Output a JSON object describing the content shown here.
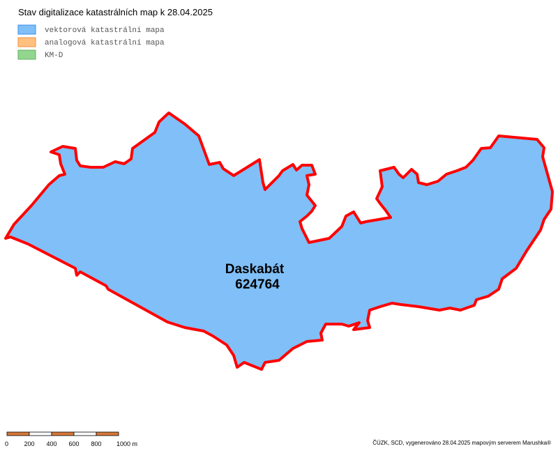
{
  "title": "Stav digitalizace katastrálních map k 28.04.2025",
  "legend": [
    {
      "label": "vektorová katastrální mapa",
      "color": "#80bff7",
      "border": "#3a8ee6"
    },
    {
      "label": "analogová katastrální mapa",
      "color": "#ffc080",
      "border": "#f09040"
    },
    {
      "label": "KM-D",
      "color": "#92d68f",
      "border": "#62b05e"
    }
  ],
  "area": {
    "name": "Daskabát",
    "code": "624764"
  },
  "scale_bar": [
    "0",
    "200",
    "400",
    "600",
    "800",
    "1000 m"
  ],
  "footer": "ČÚZK, SCD, vygenerováno 28.04.2025 mapovým serverem Marushka®"
}
